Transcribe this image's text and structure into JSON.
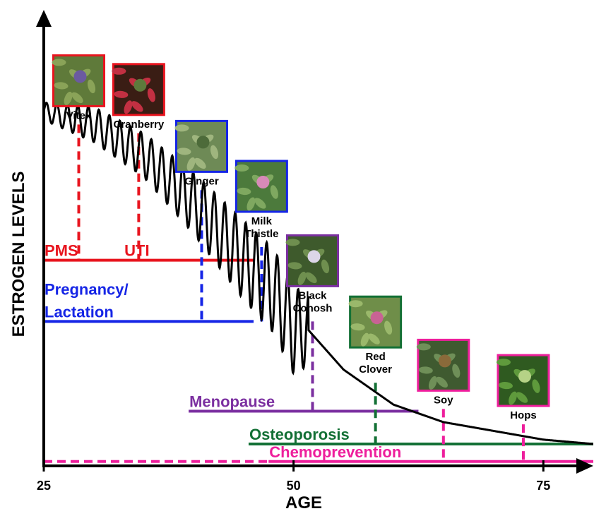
{
  "chart_data": {
    "type": "line",
    "xlabel": "AGE",
    "ylabel": "ESTROGEN LEVELS",
    "xticks": [
      25,
      50,
      75
    ],
    "xlim": [
      25,
      80
    ],
    "ylim": [
      0,
      100
    ],
    "series": [
      {
        "curve": [
          [
            25,
            81
          ],
          [
            30,
            78
          ],
          [
            35,
            71
          ],
          [
            40,
            60
          ],
          [
            45,
            47
          ],
          [
            48,
            40
          ],
          [
            50,
            31
          ],
          [
            51.5,
            31
          ],
          [
            55,
            22
          ],
          [
            60,
            14
          ],
          [
            65,
            10
          ],
          [
            70,
            8
          ],
          [
            75,
            6
          ],
          [
            80,
            5
          ]
        ],
        "oscillation_amplitude": [
          [
            25,
            2
          ],
          [
            30,
            4
          ],
          [
            35,
            5
          ],
          [
            40,
            7
          ],
          [
            45,
            9
          ],
          [
            50,
            10
          ],
          [
            51.5,
            8
          ]
        ]
      }
    ],
    "conditions": [
      {
        "label": "PMS",
        "color": "#e8141e",
        "x_range": [
          25,
          46
        ],
        "y": 47,
        "label_x": 25
      },
      {
        "label": "UTI",
        "color": "#e8141e",
        "x_range": [
          25,
          46
        ],
        "y": 47,
        "label_x": 33
      },
      {
        "label_line1": "Pregnancy/",
        "label_line2": "Lactation",
        "color": "#1525e6",
        "x_range": [
          25,
          46
        ],
        "y": 33,
        "label_x": 25
      },
      {
        "label": "Menopause",
        "color": "#7b2fa0",
        "x_range": [
          39.5,
          62.5
        ],
        "y": 12.5,
        "label_x": 39.5
      },
      {
        "label": "Osteoporosis",
        "color": "#137035",
        "x_range": [
          45.5,
          80
        ],
        "y": 5,
        "label_x": 45.5
      },
      {
        "label": "Chemoprevention",
        "color": "#ee1e9c",
        "x_range": [
          25,
          80
        ],
        "y": 1,
        "label_x": 47.5,
        "dashed_until": 47.5
      }
    ],
    "herbs": [
      {
        "name": "Vitex",
        "color": "#e8141e",
        "x": 28.5,
        "line_top_y": 78,
        "line_bottom_y": 47
      },
      {
        "name": "Cranberry",
        "color": "#e8141e",
        "x": 34.5,
        "line_top_y": 76,
        "line_bottom_y": 47
      },
      {
        "name": "Ginger",
        "color": "#1525e6",
        "x": 40.8,
        "line_top_y": 63,
        "line_bottom_y": 33
      },
      {
        "name_line1": "Milk",
        "name_line2": "Thistle",
        "color": "#1525e6",
        "x": 46.8,
        "line_top_y": 50,
        "line_bottom_y": 33
      },
      {
        "name_line1": "Black",
        "name_line2": "Cohosh",
        "color": "#7b2fa0",
        "x": 51.9,
        "line_top_y": 33,
        "line_bottom_y": 12.5
      },
      {
        "name_line1": "Red",
        "name_line2": "Clover",
        "color": "#137035",
        "x": 58.2,
        "line_top_y": 19,
        "line_bottom_y": 5
      },
      {
        "name": "Soy",
        "color": "#ee1e9c",
        "x": 65.0,
        "line_top_y": 13,
        "line_bottom_y": 1
      },
      {
        "name": "Hops",
        "color": "#ee1e9c",
        "x": 73.0,
        "line_top_y": 9.5,
        "line_bottom_y": 1
      }
    ]
  }
}
